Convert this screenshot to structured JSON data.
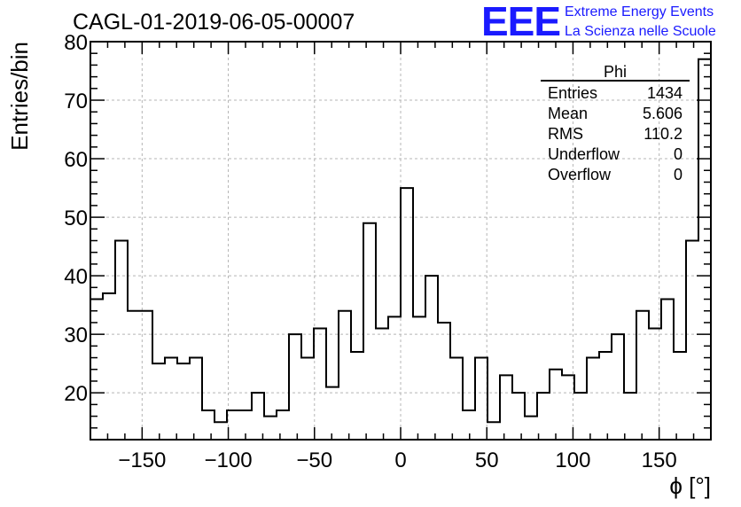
{
  "header": {
    "run_title": "CAGL-01-2019-06-05-00007",
    "logo_text": "EEE",
    "logo_line1": "Extreme Energy Events",
    "logo_line2": "La Scienza nelle Scuole",
    "logo_color": "#1a1aff"
  },
  "stats": {
    "title": "Phi",
    "rows": [
      {
        "label": "Entries",
        "value": "1434"
      },
      {
        "label": "Mean",
        "value": "5.606"
      },
      {
        "label": "RMS",
        "value": "110.2"
      },
      {
        "label": "Underflow",
        "value": "0"
      },
      {
        "label": "Overflow",
        "value": "0"
      }
    ]
  },
  "chart_data": {
    "type": "histogram",
    "title": "CAGL-01-2019-06-05-00007",
    "xlabel": "ϕ [°]",
    "ylabel": "Entries/bin",
    "xlim": [
      -180,
      180
    ],
    "ylim": [
      12,
      80
    ],
    "bin_width": 7.2,
    "bin_edges_start": -180,
    "xticks": [
      -150,
      -100,
      -50,
      0,
      50,
      100,
      150
    ],
    "xtick_labels": [
      "−150",
      "−100",
      "−50",
      "0",
      "50",
      "100",
      "150"
    ],
    "yticks": [
      20,
      30,
      40,
      50,
      60,
      70,
      80
    ],
    "ytick_labels": [
      "20",
      "30",
      "40",
      "50",
      "60",
      "70",
      "80"
    ],
    "grid": true,
    "values": [
      36,
      37,
      46,
      34,
      34,
      25,
      26,
      25,
      26,
      17,
      15,
      17,
      17,
      20,
      16,
      17,
      30,
      26,
      31,
      21,
      34,
      27,
      49,
      31,
      33,
      55,
      33,
      40,
      32,
      26,
      17,
      26,
      15,
      23,
      20,
      16,
      20,
      24,
      23,
      20,
      26,
      27,
      30,
      20,
      34,
      31,
      36,
      27,
      46,
      77
    ]
  }
}
